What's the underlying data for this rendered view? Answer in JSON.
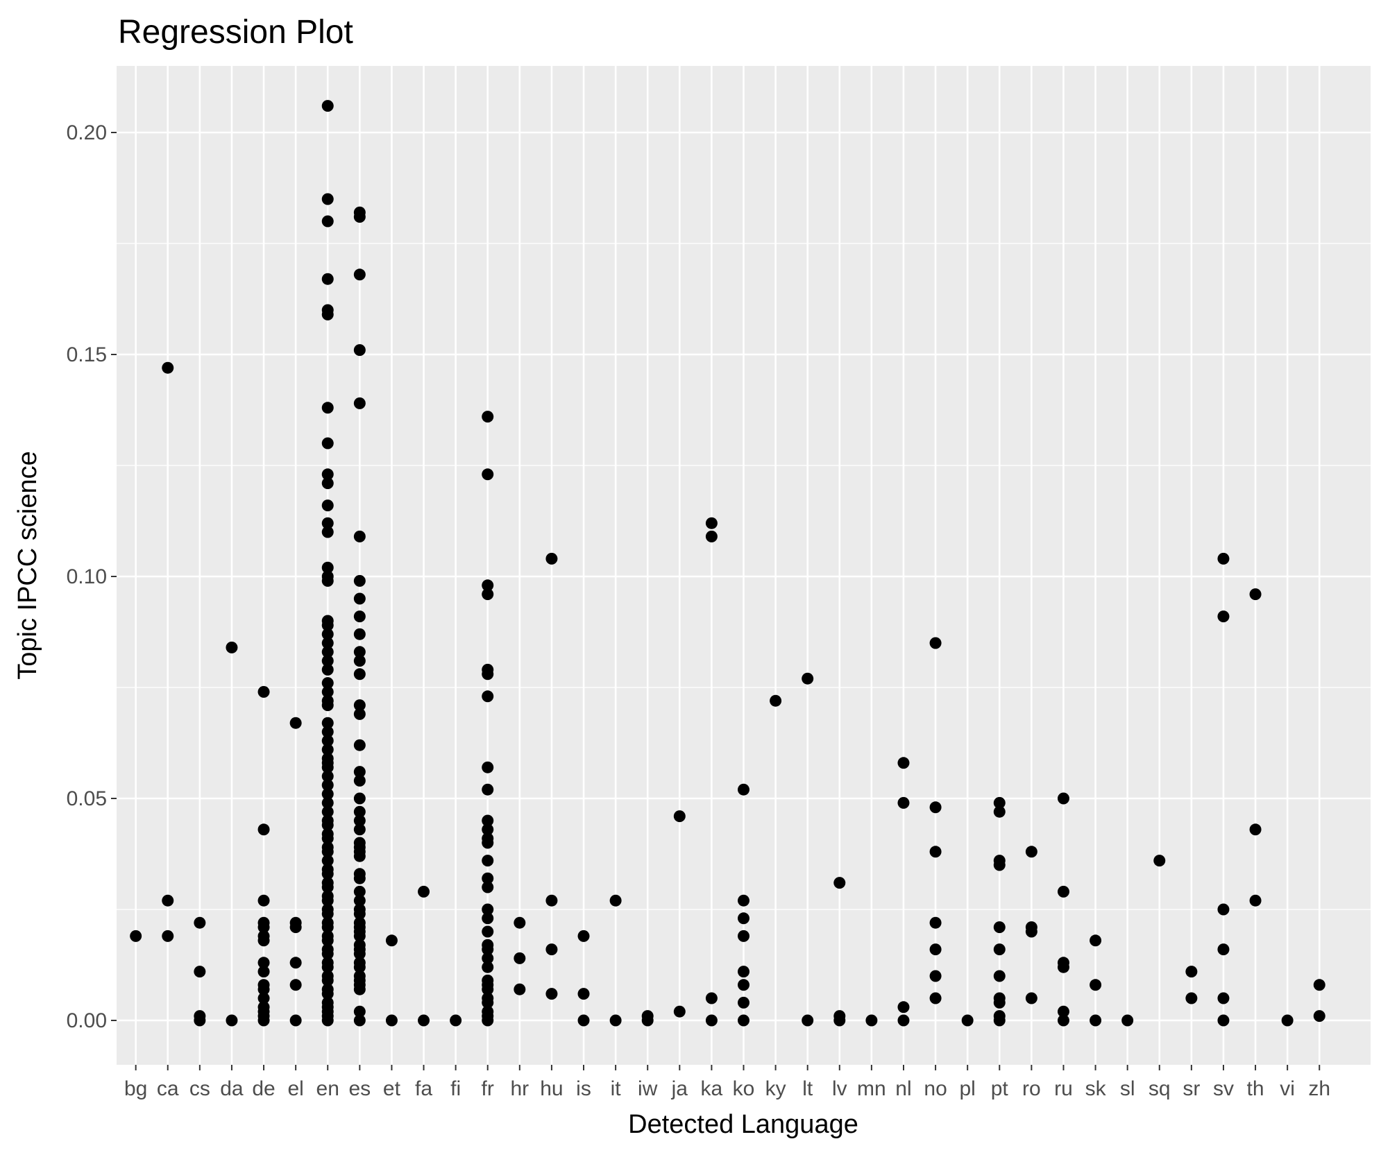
{
  "chart_data": {
    "type": "scatter",
    "title": "Regression Plot",
    "xlabel": "Detected Language",
    "ylabel": "Topic IPCC science",
    "categories": [
      "bg",
      "ca",
      "cs",
      "da",
      "de",
      "el",
      "en",
      "es",
      "et",
      "fa",
      "fi",
      "fr",
      "hr",
      "hu",
      "is",
      "it",
      "iw",
      "ja",
      "ka",
      "ko",
      "ky",
      "lt",
      "lv",
      "mn",
      "nl",
      "no",
      "pl",
      "pt",
      "ro",
      "ru",
      "sk",
      "sl",
      "sq",
      "sr",
      "sv",
      "th",
      "vi",
      "zh"
    ],
    "ylim": [
      -0.01,
      0.215
    ],
    "yticks": [
      0.0,
      0.05,
      0.1,
      0.15,
      0.2
    ],
    "ytick_labels": [
      "0.00",
      "0.05",
      "0.10",
      "0.15",
      "0.20"
    ],
    "grid": true,
    "points": {
      "bg": [
        0.019
      ],
      "ca": [
        0.147,
        0.027,
        0.019
      ],
      "cs": [
        0.022,
        0.011,
        0.001,
        0.0
      ],
      "da": [
        0.084,
        0.0
      ],
      "de": [
        0.074,
        0.043,
        0.027,
        0.022,
        0.021,
        0.019,
        0.018,
        0.013,
        0.011,
        0.008,
        0.007,
        0.005,
        0.003,
        0.002,
        0.001,
        0.0
      ],
      "el": [
        0.067,
        0.022,
        0.021,
        0.013,
        0.008,
        0.0
      ],
      "en": [
        0.206,
        0.185,
        0.18,
        0.167,
        0.16,
        0.159,
        0.138,
        0.13,
        0.123,
        0.121,
        0.116,
        0.112,
        0.11,
        0.102,
        0.1,
        0.099,
        0.09,
        0.089,
        0.087,
        0.085,
        0.083,
        0.081,
        0.079,
        0.076,
        0.074,
        0.072,
        0.071,
        0.067,
        0.065,
        0.063,
        0.061,
        0.059,
        0.058,
        0.057,
        0.055,
        0.053,
        0.051,
        0.049,
        0.047,
        0.045,
        0.044,
        0.042,
        0.041,
        0.039,
        0.038,
        0.036,
        0.034,
        0.033,
        0.031,
        0.03,
        0.028,
        0.027,
        0.025,
        0.024,
        0.022,
        0.021,
        0.019,
        0.018,
        0.016,
        0.015,
        0.013,
        0.012,
        0.01,
        0.009,
        0.007,
        0.006,
        0.004,
        0.003,
        0.002,
        0.001,
        0.0
      ],
      "es": [
        0.182,
        0.181,
        0.168,
        0.151,
        0.139,
        0.109,
        0.099,
        0.095,
        0.091,
        0.087,
        0.083,
        0.081,
        0.078,
        0.071,
        0.069,
        0.062,
        0.056,
        0.054,
        0.05,
        0.047,
        0.045,
        0.043,
        0.04,
        0.039,
        0.038,
        0.037,
        0.033,
        0.032,
        0.029,
        0.027,
        0.025,
        0.024,
        0.022,
        0.021,
        0.02,
        0.019,
        0.017,
        0.016,
        0.015,
        0.013,
        0.012,
        0.01,
        0.009,
        0.008,
        0.007,
        0.002,
        0.0
      ],
      "et": [
        0.018,
        0.0
      ],
      "fa": [
        0.029,
        0.0
      ],
      "fi": [
        0.0
      ],
      "fr": [
        0.136,
        0.123,
        0.098,
        0.096,
        0.079,
        0.078,
        0.073,
        0.057,
        0.052,
        0.045,
        0.043,
        0.041,
        0.04,
        0.036,
        0.032,
        0.03,
        0.025,
        0.023,
        0.02,
        0.017,
        0.016,
        0.014,
        0.012,
        0.009,
        0.008,
        0.007,
        0.005,
        0.004,
        0.002,
        0.001,
        0.0
      ],
      "hr": [
        0.022,
        0.014,
        0.007
      ],
      "hu": [
        0.104,
        0.027,
        0.016,
        0.006
      ],
      "is": [
        0.019,
        0.006,
        0.0
      ],
      "it": [
        0.027,
        0.0
      ],
      "iw": [
        0.001,
        0.0
      ],
      "ja": [
        0.046,
        0.002
      ],
      "ka": [
        0.112,
        0.109,
        0.005,
        0.0
      ],
      "ko": [
        0.052,
        0.027,
        0.023,
        0.019,
        0.011,
        0.008,
        0.004,
        0.0
      ],
      "ky": [
        0.072
      ],
      "lt": [
        0.077,
        0.0
      ],
      "lv": [
        0.031,
        0.001,
        0.0
      ],
      "mn": [
        0.0
      ],
      "nl": [
        0.058,
        0.049,
        0.003,
        0.0
      ],
      "no": [
        0.085,
        0.048,
        0.038,
        0.022,
        0.016,
        0.01,
        0.005
      ],
      "pl": [
        0.0
      ],
      "pt": [
        0.049,
        0.047,
        0.036,
        0.035,
        0.021,
        0.016,
        0.01,
        0.005,
        0.004,
        0.001,
        0.0
      ],
      "ro": [
        0.038,
        0.021,
        0.02,
        0.005
      ],
      "ru": [
        0.05,
        0.029,
        0.013,
        0.012,
        0.002,
        0.0
      ],
      "sk": [
        0.018,
        0.008,
        0.0
      ],
      "sl": [
        0.0
      ],
      "sq": [
        0.036
      ],
      "sr": [
        0.011,
        0.005
      ],
      "sv": [
        0.104,
        0.091,
        0.025,
        0.016,
        0.005,
        0.0
      ],
      "th": [
        0.096,
        0.043,
        0.027
      ],
      "vi": [
        0.0
      ],
      "zh": [
        0.008,
        0.001
      ]
    },
    "colors": {
      "panel_background": "#ebebeb",
      "grid": "#ffffff",
      "point": "#000000",
      "tick": "#333333"
    }
  }
}
